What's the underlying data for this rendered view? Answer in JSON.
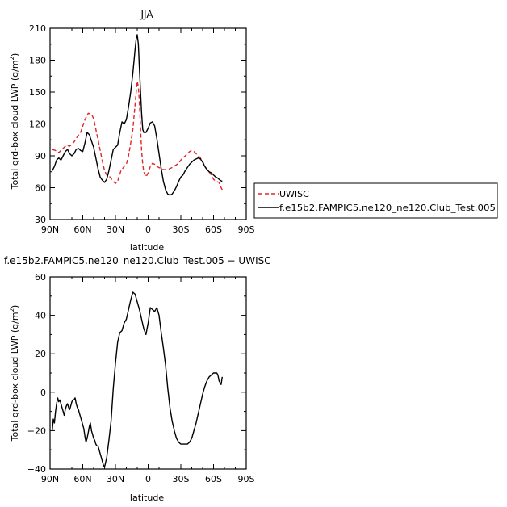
{
  "chart_data": [
    {
      "type": "line",
      "title": "JJA",
      "ylabel": "Total grd-box cloud LWP (g/m",
      "ylabel_sup": "2",
      "ylabel_end": ")",
      "xlabel": "latitude",
      "xlim": [
        90,
        -90
      ],
      "ylim": [
        30,
        210
      ],
      "x_ticks": [
        90,
        60,
        30,
        0,
        -30,
        -60,
        -90
      ],
      "x_tick_labels": [
        "90N",
        "60N",
        "30N",
        "0",
        "30S",
        "60S",
        "90S"
      ],
      "y_ticks": [
        30,
        60,
        90,
        120,
        150,
        180,
        210
      ],
      "y_tick_labels": [
        "30",
        "60",
        "90",
        "120",
        "150",
        "180",
        "210"
      ],
      "legend_position": "right",
      "series": [
        {
          "name": "UWISC",
          "color": "#e0262a",
          "dash": "dashed",
          "x": [
            88,
            85,
            82,
            80,
            78,
            75,
            72,
            70,
            68,
            65,
            62,
            60,
            58,
            55,
            52,
            50,
            48,
            45,
            42,
            40,
            38,
            35,
            32,
            30,
            28,
            25,
            22,
            20,
            18,
            16,
            14,
            12,
            11,
            10,
            9,
            8,
            7,
            6,
            5,
            4,
            2,
            0,
            -2,
            -4,
            -6,
            -8,
            -10,
            -12,
            -14,
            -16,
            -18,
            -20,
            -22,
            -25,
            -28,
            -30,
            -32,
            -35,
            -38,
            -40,
            -42,
            -45,
            -48,
            -50,
            -52,
            -55,
            -58,
            -60,
            -62,
            -65,
            -67,
            -68
          ],
          "y": [
            96,
            95,
            93,
            95,
            97,
            100,
            99,
            101,
            103,
            108,
            112,
            118,
            124,
            130,
            129,
            125,
            115,
            100,
            85,
            76,
            72,
            70,
            66,
            64,
            66,
            76,
            80,
            82,
            90,
            102,
            115,
            138,
            150,
            160,
            155,
            140,
            115,
            95,
            82,
            75,
            70,
            74,
            80,
            83,
            82,
            80,
            79,
            78,
            77,
            77,
            77,
            78,
            79,
            81,
            83,
            86,
            88,
            91,
            94,
            95,
            94,
            91,
            88,
            85,
            80,
            76,
            72,
            68,
            66,
            65,
            60,
            58
          ]
        },
        {
          "name": "f.e15b2.FAMPIC5.ne120_ne120.Club_Test.005",
          "color": "#000000",
          "dash": "solid",
          "x": [
            88,
            86,
            84,
            82,
            80,
            78,
            76,
            74,
            72,
            70,
            68,
            66,
            64,
            62,
            60,
            58,
            56,
            54,
            52,
            50,
            48,
            46,
            44,
            42,
            40,
            38,
            36,
            34,
            32,
            30,
            28,
            26,
            24,
            22,
            20,
            18,
            16,
            14,
            12,
            11,
            10,
            9,
            8,
            7,
            6,
            5,
            4,
            2,
            0,
            -2,
            -4,
            -6,
            -8,
            -10,
            -12,
            -14,
            -16,
            -18,
            -20,
            -22,
            -24,
            -26,
            -28,
            -30,
            -32,
            -34,
            -36,
            -38,
            -40,
            -42,
            -44,
            -46,
            -48,
            -50,
            -52,
            -54,
            -56,
            -58,
            -60,
            -62,
            -64,
            -66,
            -68
          ],
          "y": [
            76,
            80,
            86,
            88,
            86,
            90,
            94,
            96,
            92,
            90,
            92,
            96,
            97,
            95,
            94,
            102,
            112,
            110,
            104,
            98,
            88,
            78,
            70,
            67,
            65,
            68,
            76,
            86,
            96,
            98,
            100,
            112,
            122,
            120,
            124,
            136,
            150,
            168,
            190,
            200,
            204,
            195,
            172,
            150,
            130,
            115,
            112,
            112,
            116,
            121,
            122,
            118,
            106,
            92,
            78,
            66,
            58,
            54,
            53,
            54,
            57,
            61,
            66,
            70,
            72,
            76,
            79,
            82,
            84,
            86,
            87,
            88,
            87,
            84,
            80,
            77,
            75,
            74,
            72,
            70,
            69,
            67,
            66
          ]
        }
      ]
    },
    {
      "type": "line",
      "title": "f.e15b2.FAMPIC5.ne120_ne120.Club_Test.005 − UWISC",
      "ylabel": "Total grd-box cloud LWP (g/m",
      "ylabel_sup": "2",
      "ylabel_end": ")",
      "xlabel": "latitude",
      "xlim": [
        90,
        -90
      ],
      "ylim": [
        -40,
        60
      ],
      "x_ticks": [
        90,
        60,
        30,
        0,
        -30,
        -60,
        -90
      ],
      "x_tick_labels": [
        "90N",
        "60N",
        "30N",
        "0",
        "30S",
        "60S",
        "90S"
      ],
      "y_ticks": [
        -40,
        -20,
        0,
        20,
        40,
        60
      ],
      "y_tick_labels": [
        "−40",
        "−20",
        "0",
        "20",
        "40",
        "60"
      ],
      "series": [
        {
          "color": "#000000",
          "dash": "solid",
          "x": [
            88,
            87,
            86,
            85,
            84,
            83,
            82,
            81,
            80,
            79,
            78,
            77,
            76,
            75,
            74,
            73,
            72,
            71,
            70,
            69,
            68,
            67,
            66,
            65,
            64,
            63,
            62,
            61,
            60,
            59,
            58,
            57,
            56,
            55,
            54,
            53,
            52,
            51,
            50,
            49,
            48,
            47,
            46,
            45,
            44,
            43,
            42,
            41,
            40,
            38,
            36,
            34,
            32,
            30,
            28,
            26,
            24,
            22,
            20,
            18,
            16,
            14,
            12,
            10,
            8,
            6,
            4,
            2,
            0,
            -2,
            -4,
            -6,
            -8,
            -10,
            -12,
            -14,
            -16,
            -18,
            -20,
            -22,
            -24,
            -26,
            -28,
            -30,
            -32,
            -34,
            -36,
            -38,
            -40,
            -42,
            -44,
            -46,
            -48,
            -50,
            -52,
            -54,
            -56,
            -58,
            -60,
            -62,
            -63,
            -64,
            -65,
            -66,
            -67,
            -68
          ],
          "y": [
            -20,
            -14,
            -16,
            -10,
            -6,
            -3,
            -5,
            -4,
            -6,
            -8,
            -10,
            -12,
            -9,
            -7,
            -6,
            -8,
            -9,
            -7,
            -5,
            -4,
            -4,
            -3,
            -6,
            -8,
            -9,
            -11,
            -13,
            -15,
            -17,
            -19,
            -23,
            -26,
            -24,
            -21,
            -18,
            -16,
            -20,
            -22,
            -24,
            -25,
            -27,
            -28,
            -28,
            -30,
            -32,
            -34,
            -36,
            -38,
            -39,
            -34,
            -25,
            -15,
            2,
            15,
            26,
            31,
            32,
            36,
            38,
            43,
            48,
            52,
            51,
            47,
            43,
            38,
            33,
            30,
            36,
            44,
            43,
            42,
            44,
            40,
            31,
            23,
            14,
            2,
            -8,
            -15,
            -20,
            -24,
            -26,
            -27,
            -27,
            -27,
            -27,
            -26,
            -24,
            -20,
            -16,
            -11,
            -6,
            -1,
            3,
            6,
            8,
            9,
            10,
            10,
            10,
            9,
            6,
            5,
            4,
            8
          ]
        }
      ]
    }
  ]
}
